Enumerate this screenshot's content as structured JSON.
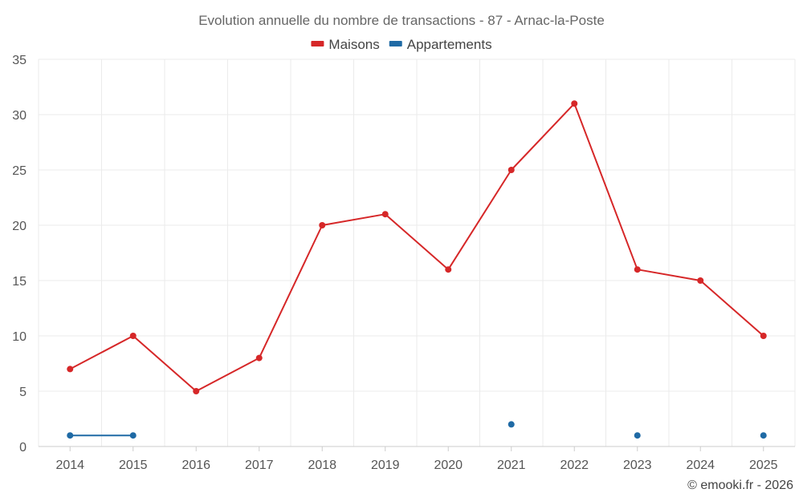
{
  "chart_data": {
    "type": "line",
    "title": "Evolution annuelle du nombre de transactions - 87 - Arnac-la-Poste",
    "categories": [
      "2014",
      "2015",
      "2016",
      "2017",
      "2018",
      "2019",
      "2020",
      "2021",
      "2022",
      "2023",
      "2024",
      "2025"
    ],
    "series": [
      {
        "name": "Maisons",
        "color": "#d62728",
        "values": [
          7,
          10,
          5,
          8,
          20,
          21,
          16,
          25,
          31,
          16,
          15,
          10
        ]
      },
      {
        "name": "Appartements",
        "color": "#1f6aa5",
        "values": [
          1,
          1,
          null,
          null,
          null,
          null,
          null,
          2,
          null,
          1,
          null,
          1
        ]
      }
    ],
    "ylim": [
      0,
      35
    ],
    "yticks": [
      0,
      5,
      10,
      15,
      20,
      25,
      30,
      35
    ],
    "xlabel": "",
    "ylabel": "",
    "legend_position": "top-center",
    "grid": true
  },
  "credit": "© emooki.fr - 2026"
}
